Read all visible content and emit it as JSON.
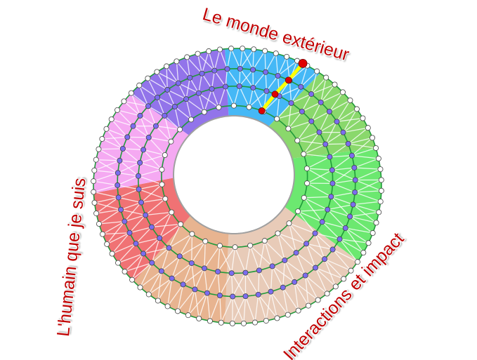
{
  "labels": {
    "top": "Le monde extérieur",
    "left": "L'humain que je suis",
    "bottom_right": "Interactions et impact"
  },
  "colors": {
    "label": "#c00000",
    "ring_line": "#1f9a3a",
    "path": "#ffff00",
    "path_node": "#e00000",
    "inner_node": "#7b6cf0",
    "outer_node": "#ffffff"
  },
  "sectors": [
    {
      "name": "blue",
      "color": "#45b8f6"
    },
    {
      "name": "green",
      "color": "#8ad86c"
    },
    {
      "name": "bright-green",
      "color": "#6ce870"
    },
    {
      "name": "peach",
      "color": "#e8cbb8"
    },
    {
      "name": "tan",
      "color": "#e8b490"
    },
    {
      "name": "red",
      "color": "#f07274"
    },
    {
      "name": "pink",
      "color": "#f5a9f2"
    },
    {
      "name": "purple",
      "color": "#9274ea"
    }
  ]
}
